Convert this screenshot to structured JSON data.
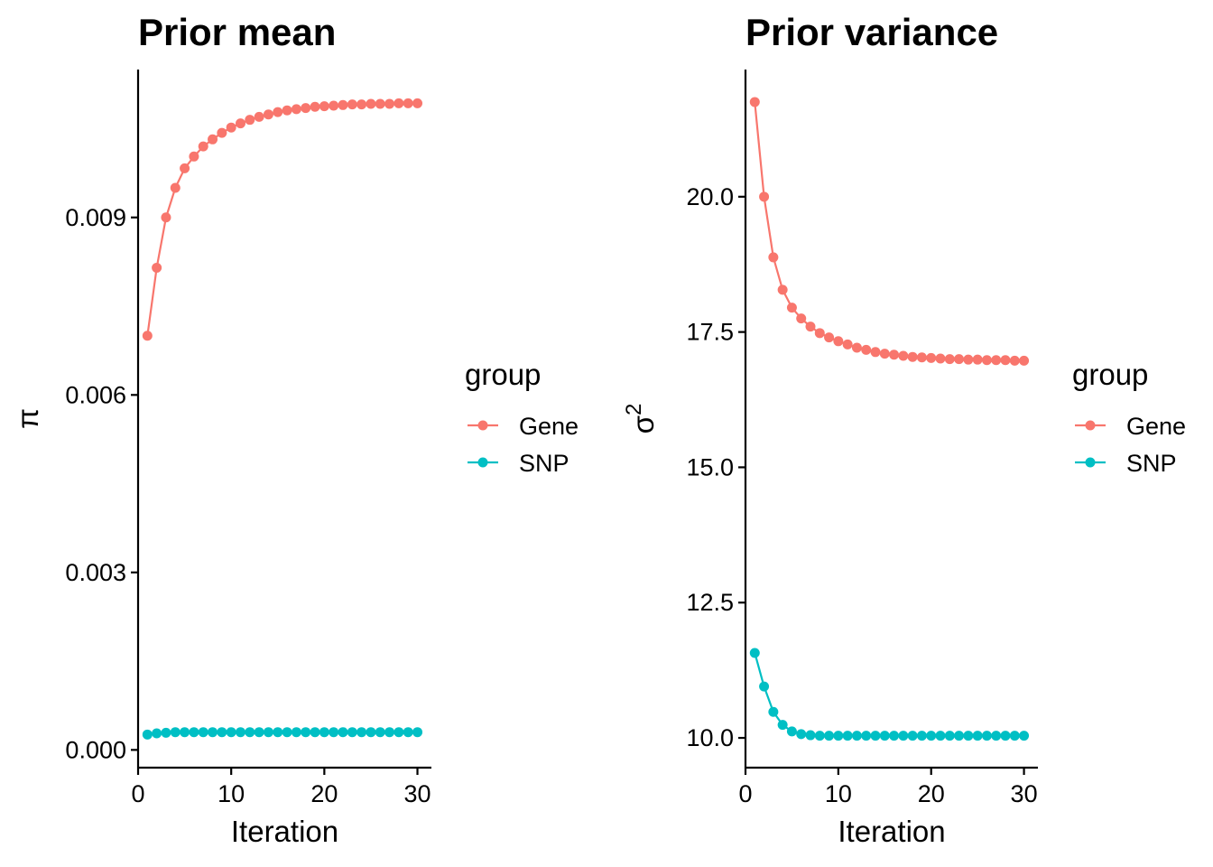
{
  "chart_data": [
    {
      "type": "line",
      "title": "Prior mean",
      "xlabel": "Iteration",
      "ylabel": "π",
      "x": [
        1,
        2,
        3,
        4,
        5,
        6,
        7,
        8,
        9,
        10,
        11,
        12,
        13,
        14,
        15,
        16,
        17,
        18,
        19,
        20,
        21,
        22,
        23,
        24,
        25,
        26,
        27,
        28,
        29,
        30
      ],
      "xlim": [
        0,
        31.5
      ],
      "ylim": [
        -0.0003,
        0.0115
      ],
      "x_ticks": [
        0,
        10,
        20,
        30
      ],
      "x_tick_labels": [
        "0",
        "10",
        "20",
        "30"
      ],
      "y_ticks": [
        0,
        0.003,
        0.006,
        0.009
      ],
      "y_tick_labels": [
        "0.000",
        "0.003",
        "0.006",
        "0.009"
      ],
      "grid": false,
      "legend": {
        "title": "group",
        "position": "right"
      },
      "series": [
        {
          "name": "Gene",
          "color": "#F8766D",
          "values": [
            0.007,
            0.00815,
            0.009,
            0.0095,
            0.00983,
            0.01003,
            0.0102,
            0.01032,
            0.01043,
            0.01052,
            0.01059,
            0.01065,
            0.0107,
            0.01074,
            0.01078,
            0.01081,
            0.01083,
            0.01085,
            0.01087,
            0.01088,
            0.01089,
            0.0109,
            0.01091,
            0.01091,
            0.01092,
            0.01092,
            0.01092,
            0.01093,
            0.01093,
            0.01093
          ]
        },
        {
          "name": "SNP",
          "color": "#00BFC4",
          "values": [
            0.00026,
            0.00028,
            0.00029,
            0.0003,
            0.0003,
            0.0003,
            0.0003,
            0.0003,
            0.0003,
            0.0003,
            0.0003,
            0.0003,
            0.0003,
            0.0003,
            0.0003,
            0.0003,
            0.0003,
            0.0003,
            0.0003,
            0.0003,
            0.0003,
            0.0003,
            0.0003,
            0.0003,
            0.0003,
            0.0003,
            0.0003,
            0.0003,
            0.0003,
            0.0003
          ]
        }
      ]
    },
    {
      "type": "line",
      "title": "Prior variance",
      "xlabel": "Iteration",
      "ylabel": "σ",
      "ylabel_superscript": "2",
      "x": [
        1,
        2,
        3,
        4,
        5,
        6,
        7,
        8,
        9,
        10,
        11,
        12,
        13,
        14,
        15,
        16,
        17,
        18,
        19,
        20,
        21,
        22,
        23,
        24,
        25,
        26,
        27,
        28,
        29,
        30
      ],
      "xlim": [
        0,
        31.5
      ],
      "ylim": [
        9.45,
        22.35
      ],
      "x_ticks": [
        0,
        10,
        20,
        30
      ],
      "x_tick_labels": [
        "0",
        "10",
        "20",
        "30"
      ],
      "y_ticks": [
        10.0,
        12.5,
        15.0,
        17.5,
        20.0
      ],
      "y_tick_labels": [
        "10.0",
        "12.5",
        "15.0",
        "17.5",
        "20.0"
      ],
      "grid": false,
      "legend": {
        "title": "group",
        "position": "right"
      },
      "series": [
        {
          "name": "Gene",
          "color": "#F8766D",
          "values": [
            21.75,
            20.0,
            18.88,
            18.28,
            17.95,
            17.75,
            17.6,
            17.48,
            17.4,
            17.33,
            17.27,
            17.21,
            17.17,
            17.13,
            17.1,
            17.08,
            17.06,
            17.04,
            17.03,
            17.02,
            17.01,
            17.0,
            17.0,
            16.99,
            16.99,
            16.98,
            16.98,
            16.98,
            16.97,
            16.97
          ]
        },
        {
          "name": "SNP",
          "color": "#00BFC4",
          "values": [
            11.57,
            10.95,
            10.48,
            10.24,
            10.12,
            10.07,
            10.05,
            10.04,
            10.04,
            10.04,
            10.04,
            10.04,
            10.04,
            10.04,
            10.04,
            10.04,
            10.04,
            10.04,
            10.04,
            10.04,
            10.04,
            10.04,
            10.04,
            10.04,
            10.04,
            10.04,
            10.04,
            10.04,
            10.04,
            10.04
          ]
        }
      ]
    }
  ]
}
